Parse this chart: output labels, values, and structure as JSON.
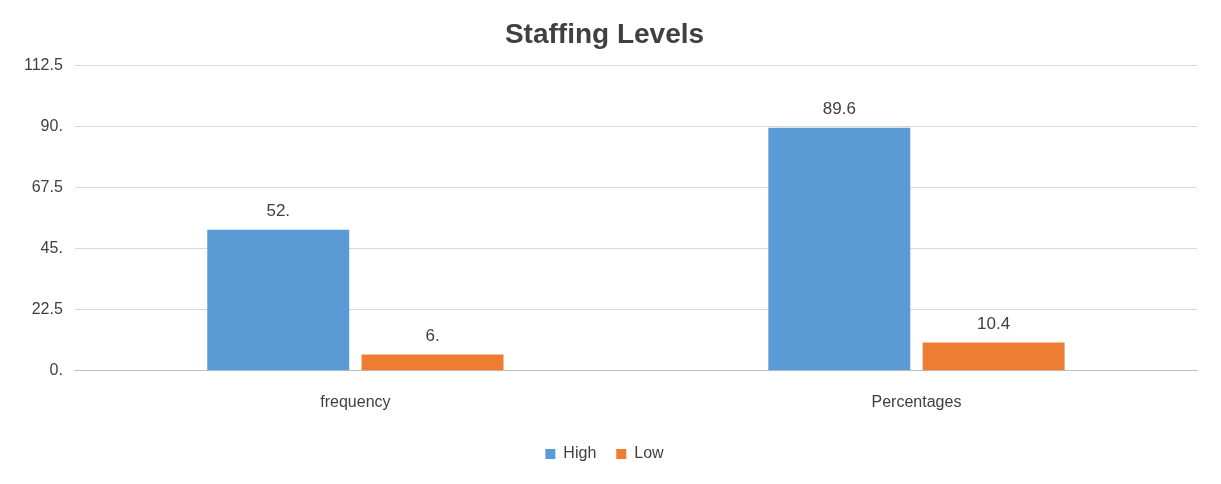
{
  "chart_data": {
    "type": "bar",
    "title": "Staffing Levels",
    "categories": [
      "frequency",
      "Percentages"
    ],
    "series": [
      {
        "name": "High",
        "color": "#5b9bd5",
        "values": [
          52,
          89.6
        ],
        "value_labels": [
          "52.",
          "89.6"
        ]
      },
      {
        "name": "Low",
        "color": "#ed7d31",
        "values": [
          6,
          10.4
        ],
        "value_labels": [
          "6.",
          "10.4"
        ]
      }
    ],
    "ylim": [
      0,
      112.5
    ],
    "yticks": [
      {
        "value": 0,
        "label": "0."
      },
      22.5,
      {
        "value": 45,
        "label": "45."
      },
      67.5,
      {
        "value": 90,
        "label": "90."
      },
      112.5
    ],
    "grid": "y",
    "legend": "bottom"
  }
}
